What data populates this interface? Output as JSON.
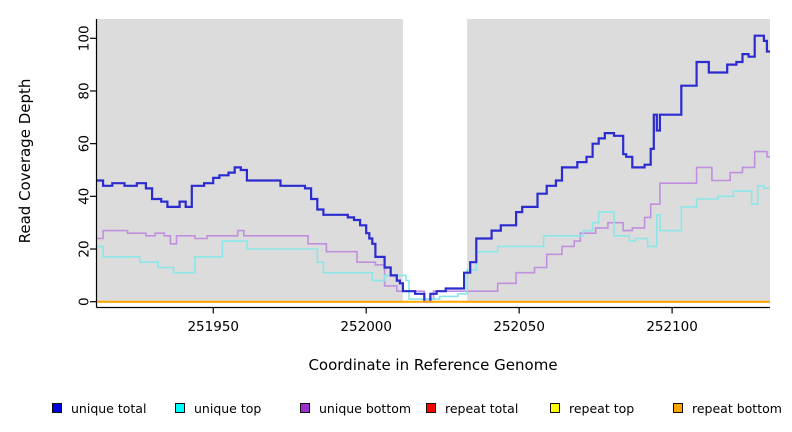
{
  "figure": {
    "x_axis_label": "Coordinate in Reference Genome",
    "y_axis_label": "Read Coverage Depth"
  },
  "legend": {
    "items": [
      {
        "label": "unique total",
        "swatch_color": "#0000DD"
      },
      {
        "label": "unique top",
        "swatch_color": "#00FFFF"
      },
      {
        "label": "unique bottom",
        "swatch_color": "#9932CC"
      },
      {
        "label": "repeat total",
        "swatch_color": "#FF0000"
      },
      {
        "label": "repeat top",
        "swatch_color": "#FFFF00"
      },
      {
        "label": "repeat bottom",
        "swatch_color": "#FFA500"
      }
    ]
  },
  "chart_data": {
    "type": "line",
    "subtype": "step-after",
    "title": "",
    "xlabel": "Coordinate in Reference Genome",
    "ylabel": "Read Coverage Depth",
    "xlim": [
      251912,
      252132
    ],
    "ylim": [
      0,
      107
    ],
    "x_ticks": [
      251950,
      252000,
      252050,
      252100
    ],
    "y_ticks": [
      0,
      20,
      40,
      60,
      80,
      100
    ],
    "grid": false,
    "legend_position": "bottom",
    "panel_bg": "#DCDCDC",
    "gap_region": {
      "x_start": 252012,
      "x_end": 252033,
      "color": "#FFFFFF"
    },
    "series": [
      {
        "name": "unique total",
        "color": "#2B2BD0",
        "points": [
          [
            251912,
            46
          ],
          [
            251914,
            44
          ],
          [
            251917,
            45
          ],
          [
            251921,
            44
          ],
          [
            251925,
            45
          ],
          [
            251928,
            43
          ],
          [
            251930,
            39
          ],
          [
            251933,
            38
          ],
          [
            251935,
            36
          ],
          [
            251939,
            38
          ],
          [
            251941,
            36
          ],
          [
            251943,
            44
          ],
          [
            251947,
            45
          ],
          [
            251950,
            47
          ],
          [
            251952,
            48
          ],
          [
            251955,
            49
          ],
          [
            251957,
            51
          ],
          [
            251959,
            50
          ],
          [
            251961,
            46
          ],
          [
            251967,
            46
          ],
          [
            251972,
            44
          ],
          [
            251980,
            43
          ],
          [
            251982,
            39
          ],
          [
            251984,
            35
          ],
          [
            251986,
            33
          ],
          [
            251994,
            32
          ],
          [
            251996,
            31
          ],
          [
            251998,
            29
          ],
          [
            252000,
            26
          ],
          [
            252001,
            24
          ],
          [
            252002,
            22
          ],
          [
            252003,
            17
          ],
          [
            252006,
            13
          ],
          [
            252008,
            10
          ],
          [
            252010,
            8
          ],
          [
            252011,
            7
          ],
          [
            252012,
            4
          ],
          [
            252016,
            3
          ],
          [
            252019,
            0
          ],
          [
            252021,
            3
          ],
          [
            252023,
            4
          ],
          [
            252026,
            5
          ],
          [
            252032,
            11
          ],
          [
            252034,
            15
          ],
          [
            252036,
            24
          ],
          [
            252041,
            27
          ],
          [
            252044,
            29
          ],
          [
            252049,
            34
          ],
          [
            252051,
            36
          ],
          [
            252056,
            41
          ],
          [
            252059,
            44
          ],
          [
            252062,
            46
          ],
          [
            252064,
            51
          ],
          [
            252069,
            53
          ],
          [
            252072,
            55
          ],
          [
            252074,
            60
          ],
          [
            252076,
            62
          ],
          [
            252078,
            64
          ],
          [
            252081,
            63
          ],
          [
            252084,
            56
          ],
          [
            252085,
            55
          ],
          [
            252087,
            51
          ],
          [
            252091,
            52
          ],
          [
            252093,
            58
          ],
          [
            252094,
            71
          ],
          [
            252095,
            65
          ],
          [
            252096,
            71
          ],
          [
            252103,
            82
          ],
          [
            252108,
            91
          ],
          [
            252112,
            87
          ],
          [
            252118,
            90
          ],
          [
            252121,
            91
          ],
          [
            252123,
            94
          ],
          [
            252125,
            93
          ],
          [
            252127,
            101
          ],
          [
            252130,
            99
          ],
          [
            252131,
            95
          ]
        ]
      },
      {
        "name": "unique top",
        "color": "#8BE7E7",
        "points": [
          [
            251912,
            21
          ],
          [
            251914,
            17
          ],
          [
            251926,
            15
          ],
          [
            251932,
            13
          ],
          [
            251937,
            11
          ],
          [
            251944,
            17
          ],
          [
            251953,
            23
          ],
          [
            251961,
            20
          ],
          [
            251984,
            15
          ],
          [
            251986,
            11
          ],
          [
            252002,
            8
          ],
          [
            252006,
            10
          ],
          [
            252013,
            8
          ],
          [
            252014,
            1
          ],
          [
            252024,
            2
          ],
          [
            252030,
            3
          ],
          [
            252033,
            12
          ],
          [
            252036,
            19
          ],
          [
            252043,
            21
          ],
          [
            252058,
            25
          ],
          [
            252071,
            27
          ],
          [
            252074,
            30
          ],
          [
            252076,
            34
          ],
          [
            252081,
            25
          ],
          [
            252086,
            23
          ],
          [
            252088,
            24
          ],
          [
            252092,
            21
          ],
          [
            252095,
            33
          ],
          [
            252096,
            27
          ],
          [
            252103,
            36
          ],
          [
            252108,
            39
          ],
          [
            252115,
            40
          ],
          [
            252120,
            42
          ],
          [
            252126,
            37
          ],
          [
            252128,
            44
          ],
          [
            252130,
            43
          ]
        ]
      },
      {
        "name": "unique bottom",
        "color": "#BF90DE",
        "points": [
          [
            251912,
            24
          ],
          [
            251914,
            27
          ],
          [
            251922,
            26
          ],
          [
            251928,
            25
          ],
          [
            251931,
            26
          ],
          [
            251934,
            25
          ],
          [
            251936,
            22
          ],
          [
            251938,
            25
          ],
          [
            251944,
            24
          ],
          [
            251948,
            25
          ],
          [
            251958,
            27
          ],
          [
            251960,
            25
          ],
          [
            251974,
            25
          ],
          [
            251981,
            22
          ],
          [
            251987,
            19
          ],
          [
            251997,
            15
          ],
          [
            252003,
            14
          ],
          [
            252006,
            6
          ],
          [
            252010,
            4
          ],
          [
            252019,
            1
          ],
          [
            252022,
            4
          ],
          [
            252043,
            7
          ],
          [
            252049,
            11
          ],
          [
            252055,
            13
          ],
          [
            252059,
            18
          ],
          [
            252064,
            21
          ],
          [
            252068,
            23
          ],
          [
            252070,
            26
          ],
          [
            252075,
            28
          ],
          [
            252079,
            30
          ],
          [
            252084,
            27
          ],
          [
            252087,
            28
          ],
          [
            252091,
            32
          ],
          [
            252093,
            37
          ],
          [
            252096,
            45
          ],
          [
            252108,
            51
          ],
          [
            252113,
            46
          ],
          [
            252119,
            49
          ],
          [
            252123,
            51
          ],
          [
            252127,
            57
          ],
          [
            252131,
            55
          ]
        ]
      },
      {
        "name": "repeat total",
        "color": "#DD0000",
        "points": [
          [
            251912,
            0
          ],
          [
            252132,
            0
          ]
        ]
      },
      {
        "name": "repeat top",
        "color": "#FFFF00",
        "points": [
          [
            251912,
            0
          ],
          [
            252132,
            0
          ]
        ]
      },
      {
        "name": "repeat bottom",
        "color": "#FFA500",
        "points": [
          [
            251912,
            0
          ],
          [
            252132,
            0
          ]
        ]
      }
    ]
  }
}
